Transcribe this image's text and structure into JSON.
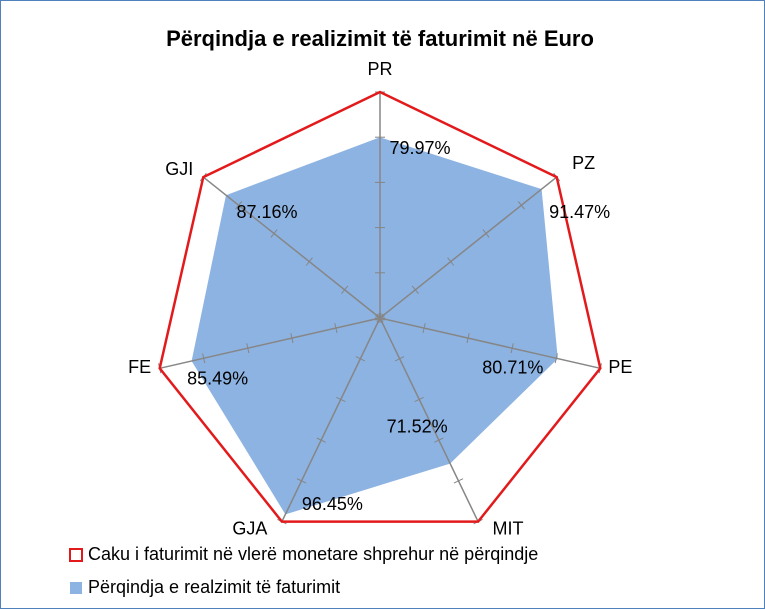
{
  "chart_data": {
    "type": "radar",
    "title": "Përqindja e realizimit të faturimit në Euro",
    "categories": [
      "PR",
      "PZ",
      "PE",
      "MIT",
      "GJA",
      "FE",
      "GJI"
    ],
    "rlim": [
      0,
      100
    ],
    "rticks": [
      0,
      20,
      40,
      60,
      80,
      100
    ],
    "legend": "bottom",
    "series": [
      {
        "name": "Caku i faturimit në vlerë monetare shprehur në përqindje",
        "color": "#e31a1c",
        "fill": false,
        "values": [
          100,
          100,
          100,
          100,
          100,
          100,
          100
        ]
      },
      {
        "name": "Përqindja e realzimit të faturimit",
        "color": "#8db3e2",
        "fill": true,
        "values": [
          79.97,
          91.47,
          80.71,
          71.52,
          96.45,
          85.49,
          87.16
        ],
        "value_labels": [
          "79.97%",
          "91.47%",
          "80.71%",
          "71.52%",
          "96.45%",
          "85.49%",
          "87.16%"
        ]
      }
    ]
  }
}
